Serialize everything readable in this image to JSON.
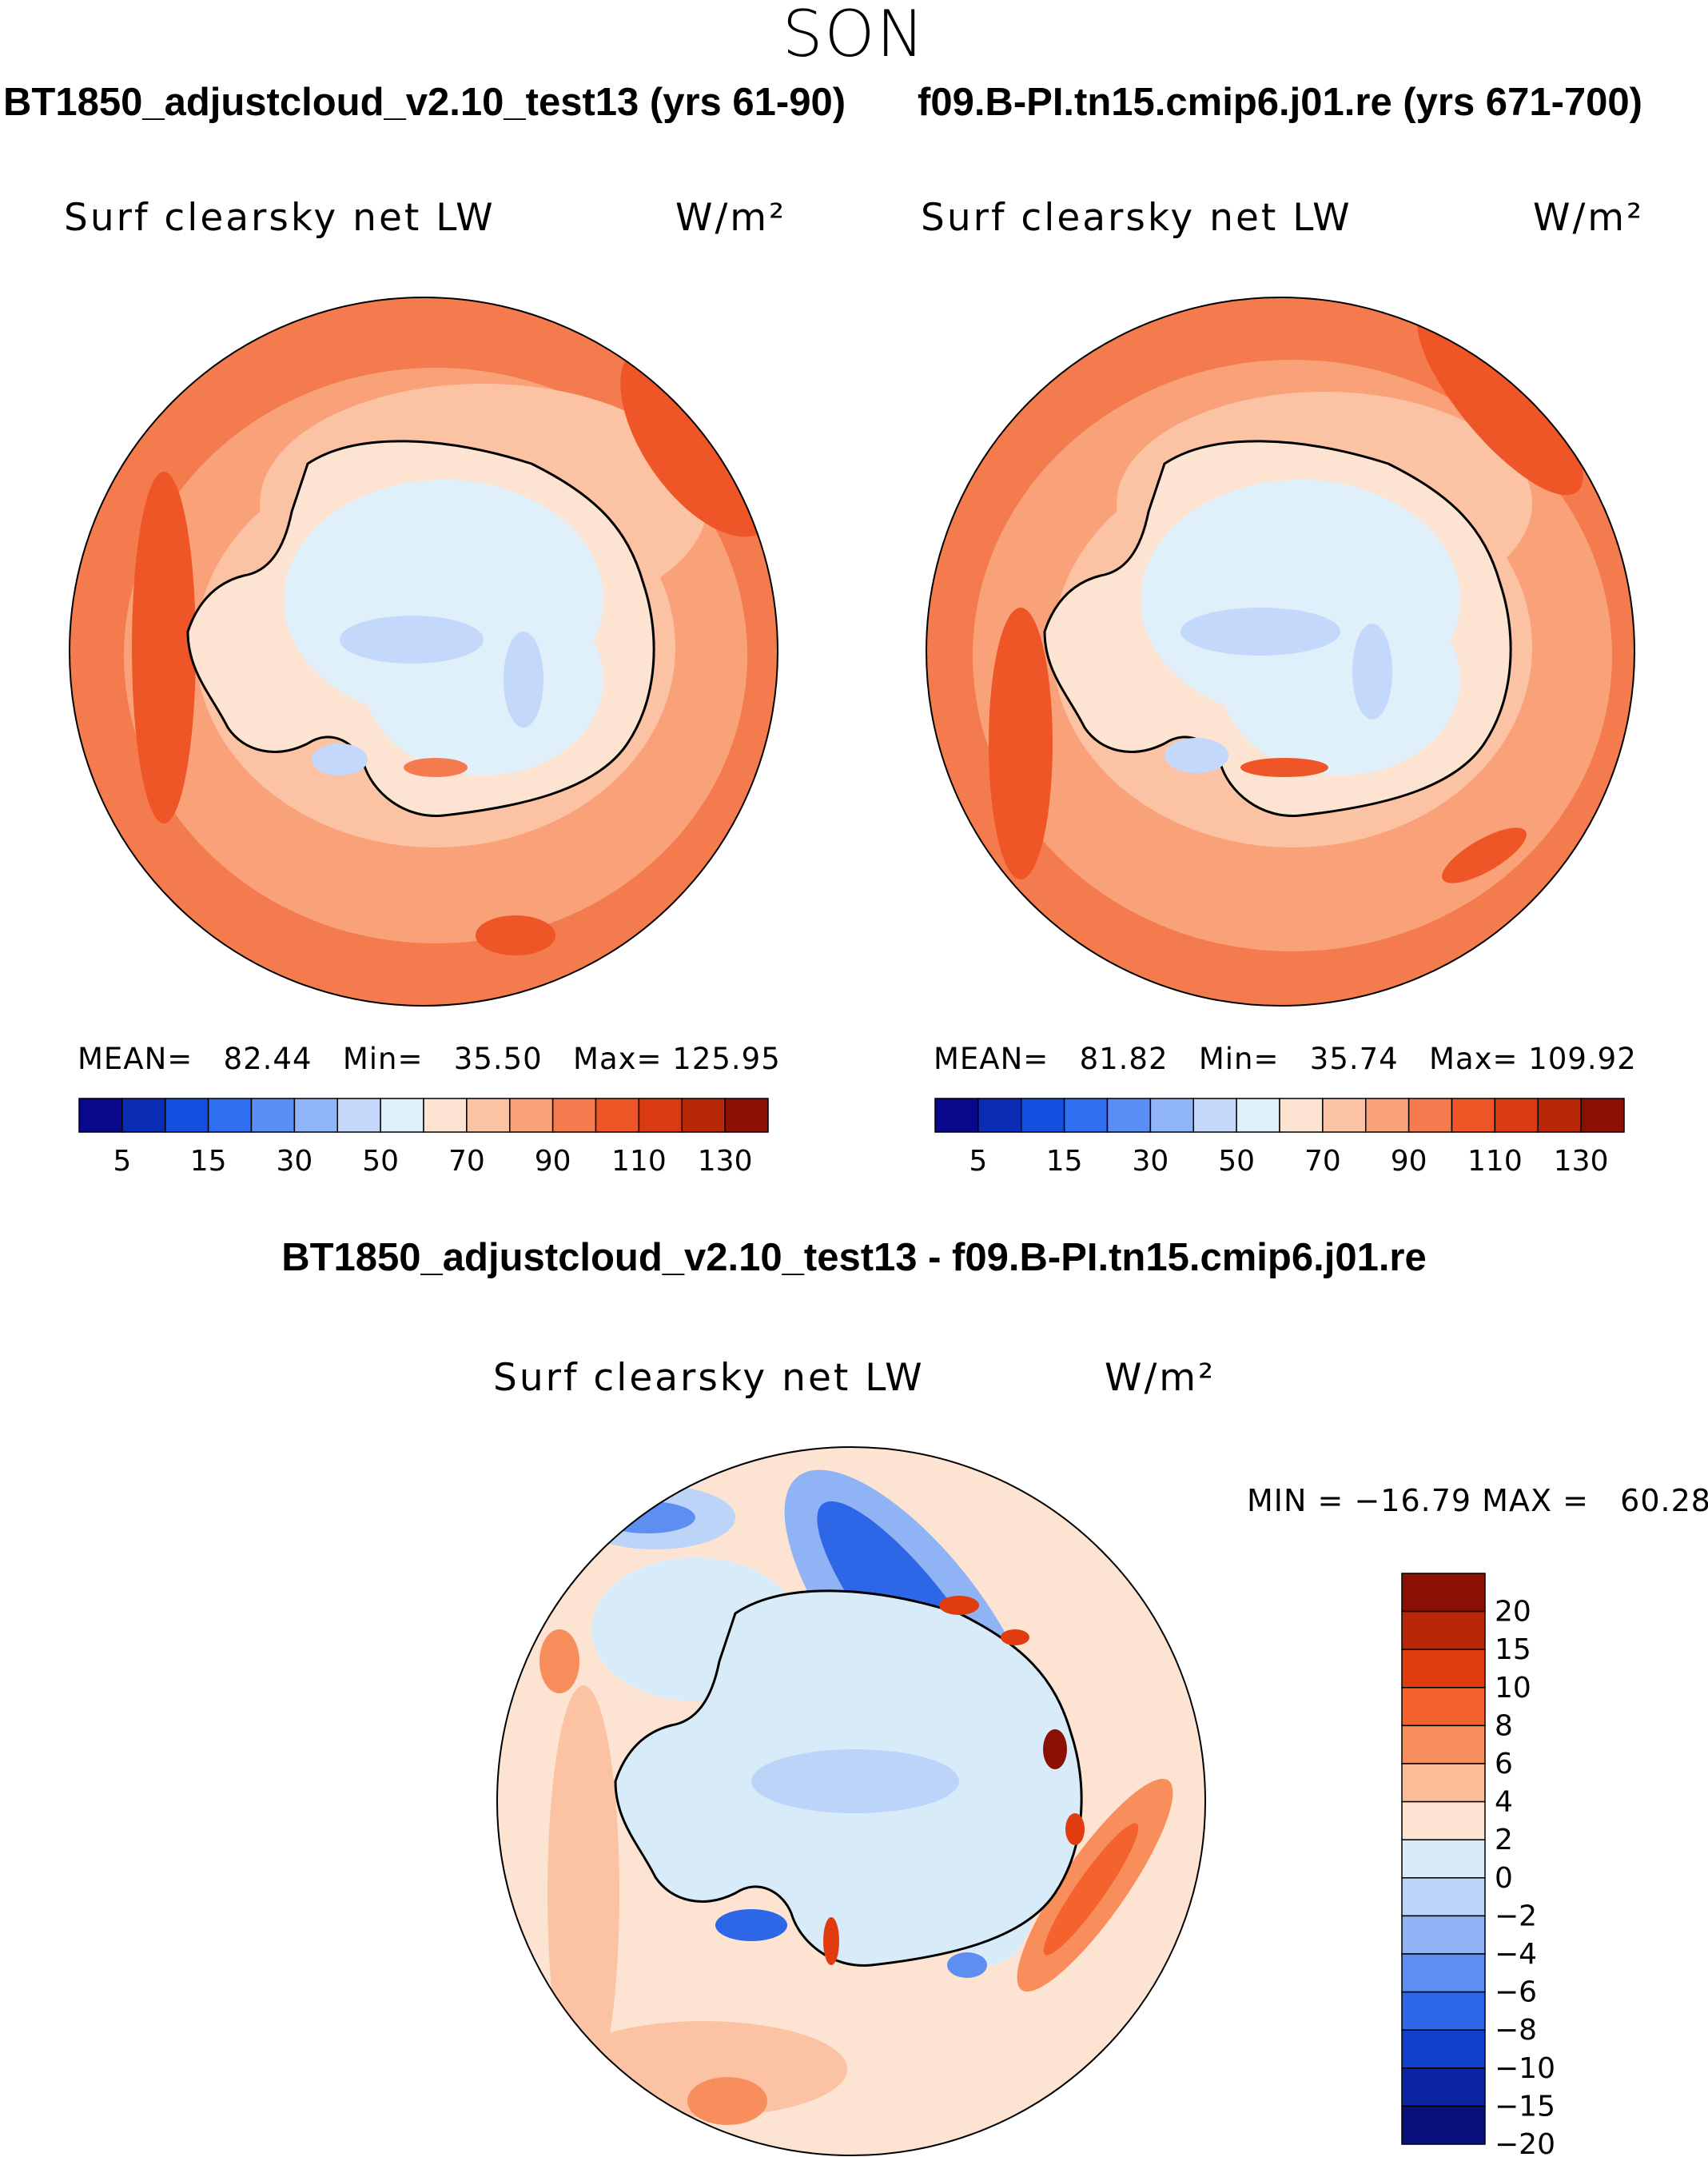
{
  "season": "SON",
  "panels": [
    {
      "title": "BT1850_adjustcloud_v2.10_test13 (yrs 61-90)",
      "variable": "Surf clearsky net LW",
      "units": "W/m²",
      "stats": {
        "mean_label": "MEAN=",
        "mean": "82.44",
        "min_label": "Min=",
        "min": "35.50",
        "max_label": "Max=",
        "max": "125.95"
      }
    },
    {
      "title": "f09.B-PI.tn15.cmip6.j01.re (yrs 671-700)",
      "variable": "Surf clearsky net LW",
      "units": "W/m²",
      "stats": {
        "mean_label": "MEAN=",
        "mean": "81.82",
        "min_label": "Min=",
        "min": "35.74",
        "max_label": "Max=",
        "max": "109.92"
      }
    }
  ],
  "abs_colorbar": {
    "colors": [
      "#08088c",
      "#0a2db4",
      "#1450e0",
      "#2f6ef0",
      "#5a8ef5",
      "#8fb4f8",
      "#c3d8fa",
      "#dff0fb",
      "#fde4d2",
      "#fbc3a3",
      "#f9a27a",
      "#f47b4d",
      "#ee5527",
      "#da3a12",
      "#b82808",
      "#8b0f03"
    ],
    "tick_labels": [
      "5",
      "15",
      "30",
      "50",
      "70",
      "90",
      "110",
      "130"
    ]
  },
  "difference": {
    "title": "BT1850_adjustcloud_v2.10_test13 - f09.B-PI.tn15.cmip6.j01.re",
    "variable": "Surf clearsky net LW",
    "units": "W/m²",
    "min_label": "MIN =",
    "min": "−16.79",
    "max_label": "MAX =",
    "max": "60.28"
  },
  "diff_colorbar": {
    "colors": [
      "#8b0f03",
      "#b82808",
      "#e03c10",
      "#f4622e",
      "#f88e5c",
      "#fbbd97",
      "#fde4d2",
      "#d8ebf8",
      "#bcd4f7",
      "#90b3f5",
      "#5d8ef2",
      "#2e66e8",
      "#1240cc",
      "#0a24a4",
      "#08107a"
    ],
    "labels": [
      "20",
      "15",
      "10",
      "8",
      "6",
      "4",
      "2",
      "0",
      "−2",
      "−4",
      "−6",
      "−8",
      "−10",
      "−15",
      "−20"
    ]
  }
}
